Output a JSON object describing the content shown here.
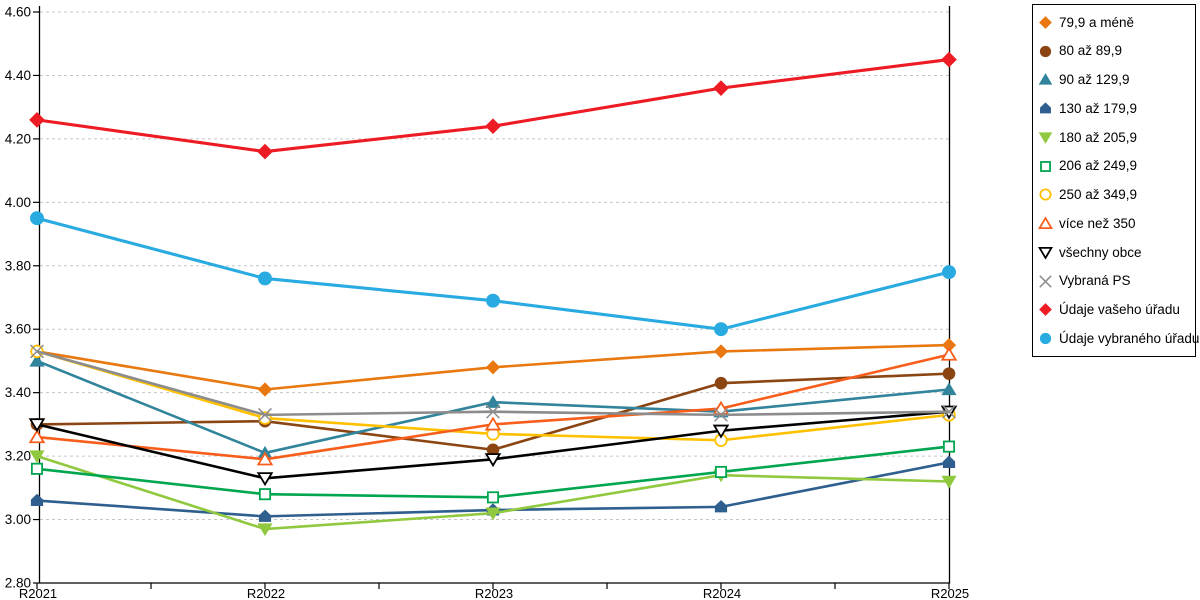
{
  "chart_data": {
    "type": "line",
    "title": "",
    "x_categories": [
      "R2021",
      "R2022",
      "R2023",
      "R2024",
      "R2025"
    ],
    "y_axis": {
      "min": 2.8,
      "max": 4.6,
      "step": 0.2,
      "tick_labels": [
        "4.60",
        "4.40",
        "4.20",
        "4.00",
        "3.80",
        "3.60",
        "3.40",
        "3.20",
        "3.00",
        "2.80"
      ]
    },
    "grid": "horizontal-dashed",
    "legend_position": "right",
    "colors": {
      "grid": "#c6c6c6",
      "axis": "#000000",
      "background": "#ffffff"
    },
    "series": [
      {
        "name": "79,9 a méně",
        "color": "#E8780F",
        "marker": "diamond",
        "fill": "solid",
        "values": [
          3.53,
          3.41,
          3.48,
          3.53,
          3.55
        ]
      },
      {
        "name": "80 až 89,9",
        "color": "#8B4513",
        "marker": "circle",
        "fill": "solid",
        "values": [
          3.3,
          3.31,
          3.22,
          3.43,
          3.46
        ]
      },
      {
        "name": "90 až 129,9",
        "color": "#31849B",
        "marker": "triangle-up",
        "fill": "solid",
        "values": [
          3.5,
          3.21,
          3.37,
          3.34,
          3.41
        ]
      },
      {
        "name": "130 až 179,9",
        "color": "#2F5F8F",
        "marker": "house",
        "fill": "solid",
        "values": [
          3.06,
          3.01,
          3.03,
          3.04,
          3.18
        ]
      },
      {
        "name": "180 až 205,9",
        "color": "#90C93F",
        "marker": "triangle-down",
        "fill": "solid",
        "values": [
          3.2,
          2.97,
          3.02,
          3.14,
          3.12
        ]
      },
      {
        "name": "206 až 249,9",
        "color": "#00A550",
        "marker": "square",
        "fill": "open",
        "values": [
          3.16,
          3.08,
          3.07,
          3.15,
          3.23
        ]
      },
      {
        "name": "250 až 349,9",
        "color": "#FFC000",
        "marker": "circle",
        "fill": "open",
        "values": [
          3.53,
          3.32,
          3.27,
          3.25,
          3.33
        ]
      },
      {
        "name": "více než 350",
        "color": "#F75E1B",
        "marker": "triangle-up",
        "fill": "open",
        "values": [
          3.26,
          3.19,
          3.3,
          3.35,
          3.52
        ]
      },
      {
        "name": "všechny obce",
        "color": "#000000",
        "marker": "triangle-down",
        "fill": "open",
        "values": [
          3.3,
          3.13,
          3.19,
          3.28,
          3.34
        ]
      },
      {
        "name": "Vybraná PS",
        "color": "#8C8C8C",
        "marker": "x",
        "fill": "line",
        "values": [
          3.53,
          3.33,
          3.34,
          3.33,
          3.34
        ]
      },
      {
        "name": "Údaje vašeho úřadu",
        "color": "#ED1C24",
        "marker": "diamond",
        "fill": "solid",
        "emphasis": true,
        "values": [
          4.26,
          4.16,
          4.24,
          4.36,
          4.45
        ]
      },
      {
        "name": "Údaje vybraného úřadu",
        "color": "#29ABE2",
        "marker": "circle",
        "fill": "solid",
        "emphasis": true,
        "values": [
          3.95,
          3.76,
          3.69,
          3.6,
          3.78
        ]
      }
    ]
  }
}
